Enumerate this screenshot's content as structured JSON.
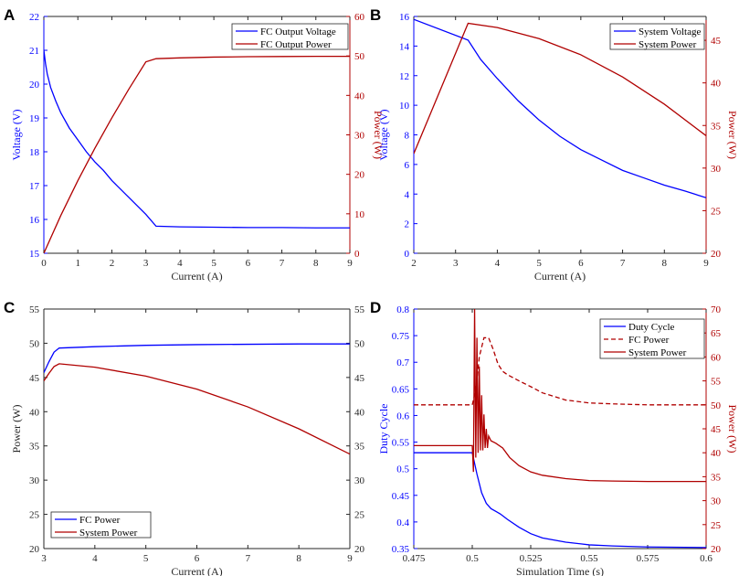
{
  "colors": {
    "blue": "#0000ff",
    "red": "#b00000",
    "axis": "#262626"
  },
  "chart_data": [
    {
      "panel": "A",
      "type": "line",
      "xlabel": "Current (A)",
      "ylabel_left": "Voltage (V)",
      "ylabel_right": "Power (W)",
      "xlim": [
        0,
        9
      ],
      "ylim_left": [
        15,
        22
      ],
      "ylim_right": [
        0,
        60
      ],
      "x_ticks": [
        "0",
        "1",
        "2",
        "3",
        "4",
        "5",
        "6",
        "7",
        "8",
        "9"
      ],
      "y_ticks_left": [
        "15",
        "16",
        "17",
        "18",
        "19",
        "20",
        "21",
        "22"
      ],
      "y_ticks_right": [
        "0",
        "10",
        "20",
        "30",
        "40",
        "50",
        "60"
      ],
      "legend_position": "top-right",
      "series": [
        {
          "name": "FC Output Voltage",
          "axis": "left",
          "color": "blue",
          "style": "solid",
          "x": [
            0,
            0.05,
            0.1,
            0.2,
            0.35,
            0.5,
            0.75,
            1.0,
            1.25,
            1.5,
            1.75,
            2.0,
            2.25,
            2.5,
            2.75,
            3.0,
            3.3,
            4,
            5,
            6,
            7,
            8,
            9
          ],
          "y": [
            21.0,
            20.6,
            20.3,
            19.9,
            19.5,
            19.15,
            18.7,
            18.35,
            18.0,
            17.7,
            17.45,
            17.15,
            16.9,
            16.65,
            16.4,
            16.15,
            15.8,
            15.78,
            15.77,
            15.76,
            15.76,
            15.75,
            15.75
          ]
        },
        {
          "name": "FC Output Power",
          "axis": "right",
          "color": "red",
          "style": "solid",
          "x": [
            0,
            0.5,
            1.0,
            1.5,
            2.0,
            2.5,
            3.0,
            3.3,
            4,
            5,
            6,
            7,
            8,
            9
          ],
          "y": [
            0,
            9.6,
            18.4,
            26.6,
            34.3,
            41.6,
            48.5,
            49.3,
            49.5,
            49.7,
            49.8,
            49.85,
            49.9,
            49.9
          ]
        }
      ]
    },
    {
      "panel": "B",
      "type": "line",
      "xlabel": "Current (A)",
      "ylabel_left": "Voltage (V)",
      "ylabel_right": "Power (W)",
      "xlim": [
        2,
        9
      ],
      "ylim_left": [
        0,
        16
      ],
      "ylim_right": [
        20,
        47.8
      ],
      "x_ticks": [
        "2",
        "3",
        "4",
        "5",
        "6",
        "7",
        "8",
        "9"
      ],
      "y_ticks_left": [
        "0",
        "2",
        "4",
        "6",
        "8",
        "10",
        "12",
        "14",
        "16"
      ],
      "y_ticks_right": [
        "20",
        "25",
        "30",
        "35",
        "40",
        "45"
      ],
      "legend_position": "top-right",
      "series": [
        {
          "name": "System Voltage",
          "axis": "left",
          "color": "blue",
          "style": "solid",
          "x": [
            2,
            3.3,
            3.6,
            4,
            4.5,
            5,
            5.5,
            6,
            6.5,
            7,
            7.5,
            8,
            8.5,
            9
          ],
          "y": [
            15.8,
            14.4,
            13.1,
            11.8,
            10.3,
            9.0,
            7.9,
            7.0,
            6.3,
            5.6,
            5.1,
            4.6,
            4.2,
            3.75
          ]
        },
        {
          "name": "System Power",
          "axis": "right",
          "color": "red",
          "style": "solid",
          "x": [
            2,
            3.3,
            4,
            5,
            6,
            7,
            8,
            9
          ],
          "y": [
            31.7,
            47.0,
            46.5,
            45.2,
            43.3,
            40.7,
            37.5,
            33.8
          ]
        }
      ]
    },
    {
      "panel": "C",
      "type": "line",
      "xlabel": "Current (A)",
      "ylabel_left": "Power (W)",
      "ylabel_right": "",
      "xlim": [
        3,
        9
      ],
      "ylim_left": [
        20,
        55
      ],
      "ylim_right": [
        20,
        55
      ],
      "x_ticks": [
        "3",
        "4",
        "5",
        "6",
        "7",
        "8",
        "9"
      ],
      "y_ticks_left": [
        "20",
        "25",
        "30",
        "35",
        "40",
        "45",
        "50",
        "55"
      ],
      "y_ticks_right": [
        "20",
        "25",
        "30",
        "35",
        "40",
        "45",
        "50",
        "55"
      ],
      "legend_position": "bottom-left",
      "series": [
        {
          "name": "FC Power",
          "axis": "left",
          "color": "blue",
          "style": "solid",
          "x": [
            3,
            3.1,
            3.2,
            3.3,
            4,
            5,
            6,
            7,
            8,
            9
          ],
          "y": [
            45.7,
            47.3,
            48.7,
            49.3,
            49.5,
            49.7,
            49.8,
            49.85,
            49.9,
            49.9
          ]
        },
        {
          "name": "System Power",
          "axis": "left",
          "color": "red",
          "style": "solid",
          "x": [
            3,
            3.1,
            3.2,
            3.3,
            4,
            5,
            6,
            7,
            8,
            9
          ],
          "y": [
            44.5,
            45.6,
            46.6,
            47.0,
            46.5,
            45.2,
            43.3,
            40.7,
            37.5,
            33.8
          ]
        }
      ]
    },
    {
      "panel": "D",
      "type": "line",
      "xlabel": "Simulation Time (s)",
      "ylabel_left": "Duty Cycle",
      "ylabel_right": "Power (W)",
      "xlim": [
        0.475,
        0.6
      ],
      "ylim_left": [
        0.35,
        0.8
      ],
      "ylim_right": [
        20,
        70
      ],
      "x_ticks": [
        "0.475",
        "0.5",
        "0.525",
        "0.55",
        "0.575",
        "0.6"
      ],
      "y_ticks_left": [
        "0.35",
        "0.4",
        "0.45",
        "0.5",
        "0.55",
        "0.6",
        "0.65",
        "0.7",
        "0.75",
        "0.8"
      ],
      "y_ticks_right": [
        "20",
        "25",
        "30",
        "35",
        "40",
        "45",
        "50",
        "55",
        "60",
        "65",
        "70"
      ],
      "legend_position": "top-right",
      "series": [
        {
          "name": "Duty Cycle",
          "axis": "left",
          "color": "blue",
          "style": "solid",
          "x": [
            0.475,
            0.5,
            0.502,
            0.504,
            0.506,
            0.508,
            0.51,
            0.512,
            0.515,
            0.52,
            0.525,
            0.53,
            0.54,
            0.55,
            0.56,
            0.575,
            0.6
          ],
          "y": [
            0.53,
            0.53,
            0.49,
            0.455,
            0.435,
            0.425,
            0.42,
            0.415,
            0.405,
            0.39,
            0.378,
            0.37,
            0.362,
            0.357,
            0.355,
            0.353,
            0.352
          ]
        },
        {
          "name": "FC Power",
          "axis": "right",
          "color": "red",
          "style": "dashed",
          "x": [
            0.475,
            0.5,
            0.501,
            0.502,
            0.503,
            0.505,
            0.507,
            0.509,
            0.511,
            0.513,
            0.515,
            0.52,
            0.525,
            0.53,
            0.54,
            0.55,
            0.56,
            0.575,
            0.6
          ],
          "y": [
            50,
            50,
            52,
            55,
            60,
            64,
            64,
            61.5,
            58.5,
            57,
            56.3,
            55,
            53.8,
            52.5,
            51,
            50.4,
            50.2,
            50,
            50
          ]
        },
        {
          "name": "System Power",
          "axis": "right",
          "color": "red",
          "style": "solid",
          "x": [
            0.475,
            0.5,
            0.5005,
            0.501,
            0.5015,
            0.502,
            0.5025,
            0.503,
            0.5035,
            0.504,
            0.5045,
            0.505,
            0.5055,
            0.506,
            0.5065,
            0.507,
            0.508,
            0.51,
            0.513,
            0.516,
            0.52,
            0.525,
            0.53,
            0.54,
            0.55,
            0.56,
            0.575,
            0.6
          ],
          "y": [
            41.5,
            41.5,
            36,
            70,
            39,
            64,
            40,
            58,
            40.5,
            52,
            40.5,
            48,
            41,
            45,
            41,
            43.5,
            42.5,
            42,
            41,
            39,
            37.3,
            36,
            35.3,
            34.6,
            34.2,
            34.1,
            34.0,
            34.0
          ]
        }
      ]
    }
  ]
}
